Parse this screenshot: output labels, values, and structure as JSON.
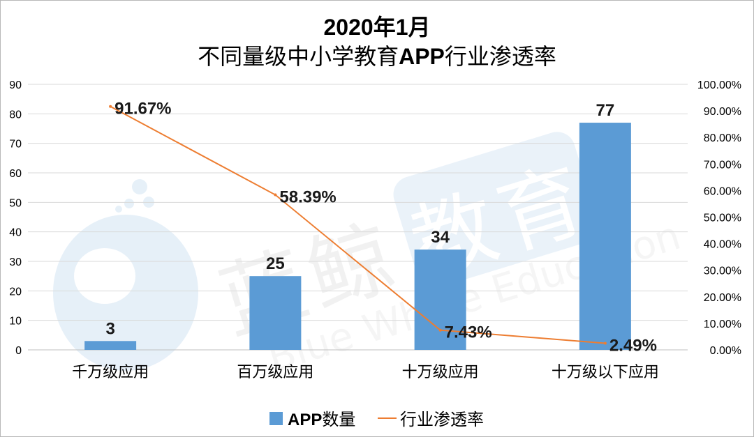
{
  "title": {
    "line1": "2020年1月",
    "line2_prefix": "不同量级中小学教育",
    "line2_bold": "APP",
    "line2_suffix": "行业渗透率"
  },
  "watermark": {
    "cn1": "蓝",
    "cn2": "鲸",
    "cn3": "教",
    "cn4": "育",
    "en": "Blue Whale Education"
  },
  "colors": {
    "bar": "#5B9BD5",
    "line": "#ED7D31",
    "grid": "#d9d9d9"
  },
  "chart_data": {
    "type": "bar",
    "categories": [
      "千万级应用",
      "百万级应用",
      "十万级应用",
      "十万级以下应用"
    ],
    "series": [
      {
        "name": "APP数量",
        "type": "bar",
        "axis": "left",
        "values": [
          3,
          25,
          34,
          77
        ],
        "labels": [
          "3",
          "25",
          "34",
          "77"
        ]
      },
      {
        "name": "行业渗透率",
        "type": "line",
        "axis": "right",
        "values": [
          91.67,
          58.39,
          7.43,
          2.49
        ],
        "labels": [
          "91.67%",
          "58.39%",
          "7.43%",
          "2.49%"
        ]
      }
    ],
    "y_left": {
      "min": 0,
      "max": 90,
      "ticks": [
        "0",
        "10",
        "20",
        "30",
        "40",
        "50",
        "60",
        "70",
        "80",
        "90"
      ]
    },
    "y_right": {
      "min": 0,
      "max": 100,
      "ticks": [
        "0.00%",
        "10.00%",
        "20.00%",
        "30.00%",
        "40.00%",
        "50.00%",
        "60.00%",
        "70.00%",
        "80.00%",
        "90.00%",
        "100.00%"
      ]
    },
    "grid": true,
    "legend": {
      "position": "bottom",
      "bar_label_bold": "APP",
      "bar_label_rest": "数量",
      "line_label": "行业渗透率"
    }
  }
}
